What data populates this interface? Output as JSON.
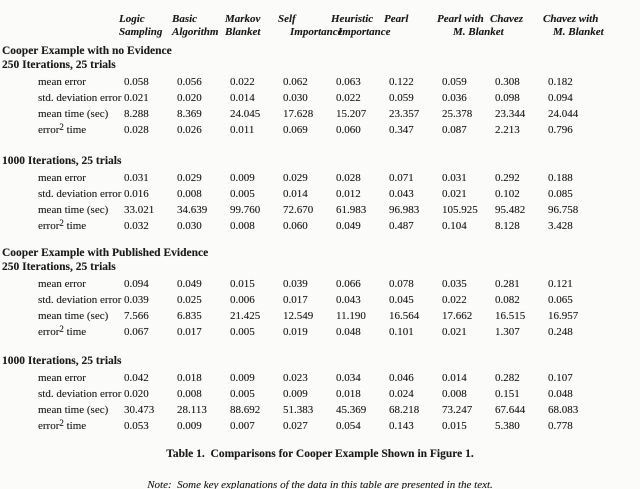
{
  "colors": {
    "background": "#fbfbf9",
    "ink": "#1c1c1c"
  },
  "caption": "Table 1.  Comparisons for Cooper Example Shown in Figure 1.",
  "note": "Note:  Some key explanations of the data in this table are presented in the text.",
  "table": {
    "columns": [
      {
        "line1": "Logic",
        "line2": "Sampling"
      },
      {
        "line1": "Basic",
        "line2": "Algorithm"
      },
      {
        "line1": "Markov",
        "line2": "Blanket"
      },
      {
        "line1": "Self",
        "line2": "Importance"
      },
      {
        "line1": "Heuristic",
        "line2": "Importance"
      },
      {
        "line1": "Pearl",
        "line2": ""
      },
      {
        "line1": "Pearl with",
        "line2": "M. Blanket"
      },
      {
        "line1": "Chavez",
        "line2": ""
      },
      {
        "line1": "Chavez with",
        "line2": "M. Blanket"
      }
    ],
    "sections": [
      {
        "title": "Cooper Example with no Evidence",
        "subsections": [
          {
            "title": "250 Iterations, 25 trials",
            "rows": [
              {
                "label": "mean error",
                "values": [
                  "0.058",
                  "0.056",
                  "0.022",
                  "0.062",
                  "0.063",
                  "0.122",
                  "0.059",
                  "0.308",
                  "0.182"
                ]
              },
              {
                "label": "std. deviation error",
                "values": [
                  "0.021",
                  "0.020",
                  "0.014",
                  "0.030",
                  "0.022",
                  "0.059",
                  "0.036",
                  "0.098",
                  "0.094"
                ]
              },
              {
                "label": "mean time (sec)",
                "values": [
                  "8.288",
                  "8.369",
                  "24.045",
                  "17.628",
                  "15.207",
                  "23.357",
                  "25.378",
                  "23.344",
                  "24.044"
                ]
              },
              {
                "label": {
                  "base": "error",
                  "sup": "2",
                  "rest": " time"
                },
                "values": [
                  "0.028",
                  "0.026",
                  "0.011",
                  "0.069",
                  "0.060",
                  "0.347",
                  "0.087",
                  "2.213",
                  "0.796"
                ]
              }
            ]
          },
          {
            "title": "1000 Iterations, 25 trials",
            "rows": [
              {
                "label": "mean error",
                "values": [
                  "0.031",
                  "0.029",
                  "0.009",
                  "0.029",
                  "0.028",
                  "0.071",
                  "0.031",
                  "0.292",
                  "0.188"
                ]
              },
              {
                "label": "std. deviation error",
                "values": [
                  "0.016",
                  "0.008",
                  "0.005",
                  "0.014",
                  "0.012",
                  "0.043",
                  "0.021",
                  "0.102",
                  "0.085"
                ]
              },
              {
                "label": "mean time (sec)",
                "values": [
                  "33.021",
                  "34.639",
                  "99.760",
                  "72.670",
                  "61.983",
                  "96.983",
                  "105.925",
                  "95.482",
                  "96.758"
                ]
              },
              {
                "label": {
                  "base": "error",
                  "sup": "2",
                  "rest": " time"
                },
                "values": [
                  "0.032",
                  "0.030",
                  "0.008",
                  "0.060",
                  "0.049",
                  "0.487",
                  "0.104",
                  "8.128",
                  "3.428"
                ]
              }
            ]
          }
        ]
      },
      {
        "title": "Cooper Example with Published Evidence",
        "subsections": [
          {
            "title": "250 Iterations, 25 trials",
            "rows": [
              {
                "label": "mean error",
                "values": [
                  "0.094",
                  "0.049",
                  "0.015",
                  "0.039",
                  "0.066",
                  "0.078",
                  "0.035",
                  "0.281",
                  "0.121"
                ]
              },
              {
                "label": "std. deviation error",
                "values": [
                  "0.039",
                  "0.025",
                  "0.006",
                  "0.017",
                  "0.043",
                  "0.045",
                  "0.022",
                  "0.082",
                  "0.065"
                ]
              },
              {
                "label": "mean time (sec)",
                "values": [
                  "7.566",
                  "6.835",
                  "21.425",
                  "12.549",
                  "11.190",
                  "16.564",
                  "17.662",
                  "16.515",
                  "16.957"
                ]
              },
              {
                "label": {
                  "base": "error",
                  "sup": "2",
                  "rest": " time"
                },
                "values": [
                  "0.067",
                  "0.017",
                  "0.005",
                  "0.019",
                  "0.048",
                  "0.101",
                  "0.021",
                  "1.307",
                  "0.248"
                ]
              }
            ]
          },
          {
            "title": "1000 Iterations, 25 trials",
            "rows": [
              {
                "label": "mean error",
                "values": [
                  "0.042",
                  "0.018",
                  "0.009",
                  "0.023",
                  "0.034",
                  "0.046",
                  "0.014",
                  "0.282",
                  "0.107"
                ]
              },
              {
                "label": "std. deviation error",
                "values": [
                  "0.020",
                  "0.008",
                  "0.005",
                  "0.009",
                  "0.018",
                  "0.024",
                  "0.008",
                  "0.151",
                  "0.048"
                ]
              },
              {
                "label": "mean time (sec)",
                "values": [
                  "30.473",
                  "28.113",
                  "88.692",
                  "51.383",
                  "45.369",
                  "68.218",
                  "73.247",
                  "67.644",
                  "68.083"
                ]
              },
              {
                "label": {
                  "base": "error",
                  "sup": "2",
                  "rest": " time"
                },
                "values": [
                  "0.053",
                  "0.009",
                  "0.007",
                  "0.027",
                  "0.054",
                  "0.143",
                  "0.015",
                  "5.380",
                  "0.778"
                ]
              }
            ]
          }
        ]
      }
    ]
  }
}
